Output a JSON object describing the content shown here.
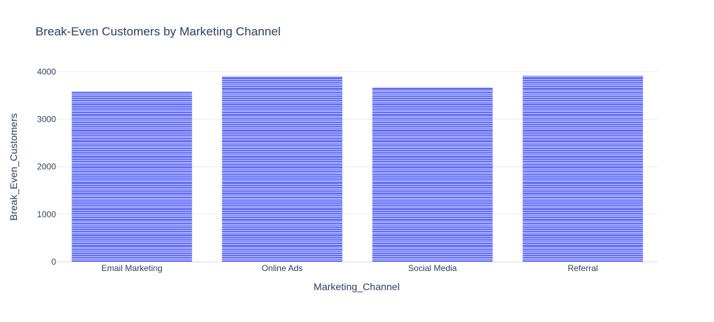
{
  "chart_data": {
    "type": "bar",
    "title": "Break-Even Customers by Marketing Channel",
    "xlabel": "Marketing_Channel",
    "ylabel": "Break_Even_Customers",
    "categories": [
      "Email Marketing",
      "Online Ads",
      "Social Media",
      "Referral"
    ],
    "values": [
      3590,
      3905,
      3665,
      3915
    ],
    "ylim": [
      0,
      4170
    ],
    "yticks": [
      0,
      1000,
      2000,
      3000,
      4000
    ],
    "ytick_labels": [
      "0",
      "1000",
      "2000",
      "3000",
      "4000"
    ],
    "grid": true,
    "legend": "none",
    "colors": {
      "bar": "#636efa",
      "bar_light": "#c5c9fd",
      "grid": "#e9ecf2",
      "axis_text": "#2a3f5f"
    }
  }
}
